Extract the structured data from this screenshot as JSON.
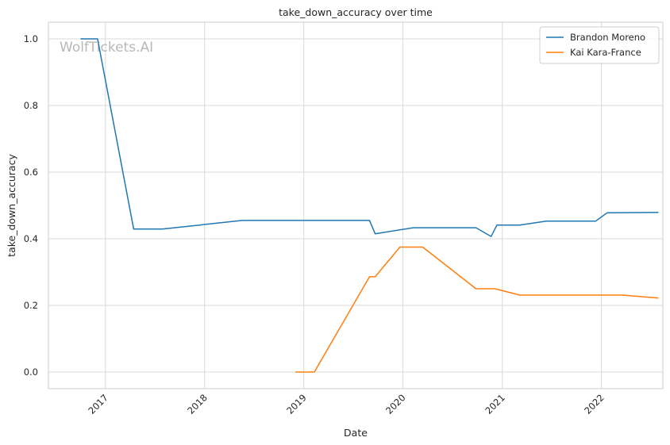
{
  "chart_data": {
    "type": "line",
    "title": "take_down_accuracy over time",
    "xlabel": "Date",
    "ylabel": "take_down_accuracy",
    "watermark": "WolfTickets.AI",
    "xlim": [
      "2016-06-05",
      "2022-08-15"
    ],
    "ylim": [
      -0.05,
      1.05
    ],
    "x_ticks": [
      "2017-01-01",
      "2018-01-01",
      "2019-01-01",
      "2020-01-01",
      "2021-01-01",
      "2022-01-01"
    ],
    "x_tick_labels": [
      "2017",
      "2018",
      "2019",
      "2020",
      "2021",
      "2022"
    ],
    "y_ticks": [
      0.0,
      0.2,
      0.4,
      0.6,
      0.8,
      1.0
    ],
    "y_tick_labels": [
      "0.0",
      "0.2",
      "0.4",
      "0.6",
      "0.8",
      "1.0"
    ],
    "grid": true,
    "legend_position": "top-right",
    "series": [
      {
        "name": "Brandon Moreno",
        "color": "#1f77b4",
        "points": [
          [
            "2016-10-01",
            1.0
          ],
          [
            "2016-12-03",
            1.0
          ],
          [
            "2017-04-15",
            0.429
          ],
          [
            "2017-07-29",
            0.429
          ],
          [
            "2018-05-19",
            0.455
          ],
          [
            "2019-08-31",
            0.455
          ],
          [
            "2019-09-21",
            0.415
          ],
          [
            "2020-02-08",
            0.433
          ],
          [
            "2020-09-26",
            0.433
          ],
          [
            "2020-11-21",
            0.407
          ],
          [
            "2020-12-12",
            0.441
          ],
          [
            "2021-03-06",
            0.441
          ],
          [
            "2021-06-12",
            0.453
          ],
          [
            "2021-12-11",
            0.453
          ],
          [
            "2022-01-22",
            0.478
          ],
          [
            "2022-07-30",
            0.479
          ]
        ]
      },
      {
        "name": "Kai Kara-France",
        "color": "#ff7f0e",
        "points": [
          [
            "2018-12-01",
            0.0
          ],
          [
            "2019-02-09",
            0.0
          ],
          [
            "2019-08-31",
            0.286
          ],
          [
            "2019-09-21",
            0.286
          ],
          [
            "2019-12-21",
            0.375
          ],
          [
            "2020-03-14",
            0.375
          ],
          [
            "2020-09-26",
            0.25
          ],
          [
            "2020-12-05",
            0.25
          ],
          [
            "2021-03-06",
            0.231
          ],
          [
            "2022-03-19",
            0.231
          ],
          [
            "2022-07-30",
            0.222
          ]
        ]
      }
    ]
  }
}
